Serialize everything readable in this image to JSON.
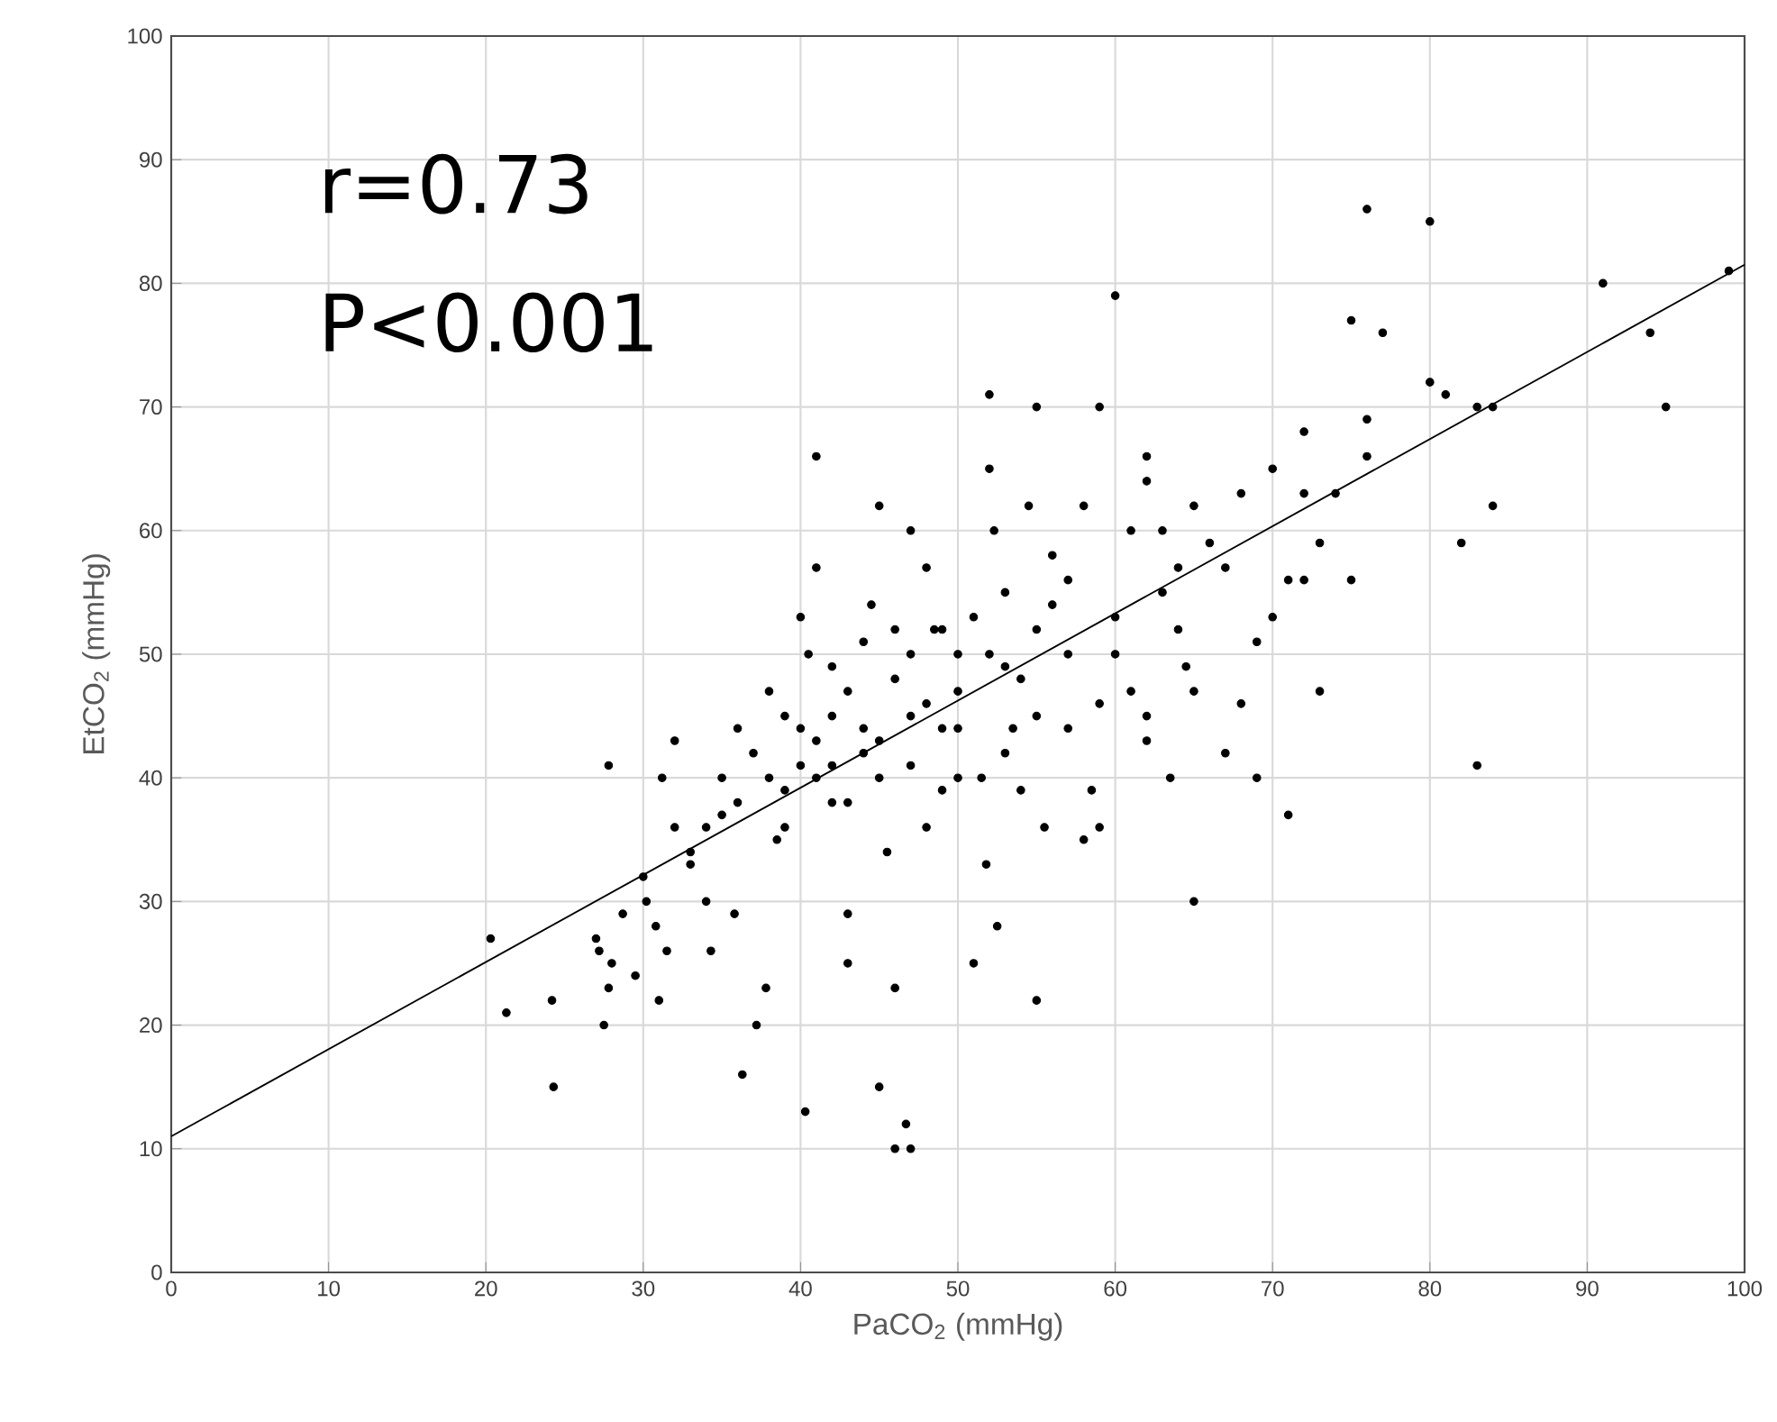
{
  "chart_data": {
    "type": "scatter",
    "xlabel": "PaCO$_{2}$ (mmHg)",
    "ylabel": "EtCO$_{2}$ (mmHg)",
    "annotations": [
      "r=0.73",
      "P<0.001"
    ],
    "xlim": [
      0,
      100
    ],
    "ylim": [
      0,
      100
    ],
    "xticks": [
      0,
      10,
      20,
      30,
      40,
      50,
      60,
      70,
      80,
      90,
      100
    ],
    "yticks": [
      0,
      10,
      20,
      30,
      40,
      50,
      60,
      70,
      80,
      90,
      100
    ],
    "grid": true,
    "series": [
      {
        "marker": "circle",
        "color": "#000000",
        "x": [
          20.3,
          21.3,
          24.2,
          24.3,
          27.5,
          27.8,
          27,
          27.2,
          27.8,
          28,
          28.7,
          29.5,
          30,
          30.2,
          30.8,
          31,
          31.2,
          31.5,
          32,
          32,
          33,
          34,
          34.3,
          35,
          35.8,
          36.3,
          37.2,
          37.8,
          38.5,
          39,
          40,
          40.3,
          40.5,
          41,
          41,
          41,
          42,
          42,
          43,
          43,
          44,
          44.5,
          45,
          45,
          45.5,
          46,
          46,
          46.7,
          47,
          47,
          47,
          48,
          48,
          48.5,
          49,
          50,
          50,
          51,
          51.5,
          51.8,
          52,
          52,
          52.3,
          52.5,
          53,
          53.5,
          54,
          54.5,
          55,
          55,
          55.5,
          56,
          57,
          57,
          58,
          58,
          58.5,
          59,
          59,
          59,
          60,
          60,
          60,
          61,
          61,
          62,
          62,
          62,
          62,
          63,
          63,
          63.5,
          64,
          64,
          64.5,
          65,
          65,
          65,
          66,
          67,
          67,
          68,
          68,
          69,
          69,
          70,
          70,
          71,
          71,
          72,
          72,
          72,
          73,
          73,
          74,
          75,
          75,
          76,
          76,
          76,
          77,
          80,
          80,
          81,
          82,
          83,
          83,
          84,
          84,
          91,
          94,
          95,
          99,
          36,
          37,
          38,
          39,
          40,
          42,
          43,
          44,
          45,
          46,
          47,
          48,
          49,
          50,
          51,
          52,
          53,
          54,
          55,
          56,
          57,
          38,
          40,
          42,
          44,
          46,
          36,
          34,
          33,
          35,
          39,
          41,
          43,
          45,
          47,
          49,
          50,
          53,
          55
        ],
        "values": [
          27,
          21,
          22,
          15,
          20,
          41,
          27,
          26,
          23,
          25,
          29,
          24,
          32,
          30,
          28,
          22,
          40,
          26,
          43,
          36,
          33,
          30,
          26,
          37,
          29,
          16,
          20,
          23,
          35,
          39,
          44,
          13,
          50,
          66,
          57,
          40,
          45,
          38,
          29,
          25,
          42,
          54,
          62,
          15,
          34,
          23,
          10,
          12,
          10,
          60,
          45,
          57,
          36,
          52,
          39,
          44,
          47,
          25,
          40,
          33,
          71,
          65,
          60,
          28,
          49,
          44,
          39,
          62,
          22,
          70,
          36,
          54,
          56,
          44,
          62,
          35,
          39,
          70,
          36,
          46,
          79,
          53,
          50,
          60,
          47,
          66,
          64,
          45,
          43,
          60,
          55,
          40,
          57,
          52,
          49,
          30,
          47,
          62,
          59,
          42,
          57,
          63,
          46,
          51,
          40,
          65,
          53,
          37,
          56,
          68,
          63,
          56,
          59,
          47,
          63,
          77,
          56,
          86,
          69,
          66,
          76,
          85,
          72,
          71,
          59,
          70,
          41,
          62,
          70,
          80,
          76,
          70,
          81,
          38,
          42,
          40,
          36,
          41,
          41,
          47,
          44,
          43,
          48,
          50,
          46,
          52,
          50,
          53,
          50,
          55,
          48,
          52,
          58,
          50,
          47,
          53,
          49,
          51,
          52,
          44,
          36,
          34,
          40,
          45,
          43,
          38,
          40,
          41,
          44,
          40,
          42,
          45
        ]
      },
      {
        "type": "line",
        "marker": "none",
        "color": "#000000",
        "x": [
          0,
          100
        ],
        "values": [
          11,
          81.5
        ]
      }
    ]
  }
}
